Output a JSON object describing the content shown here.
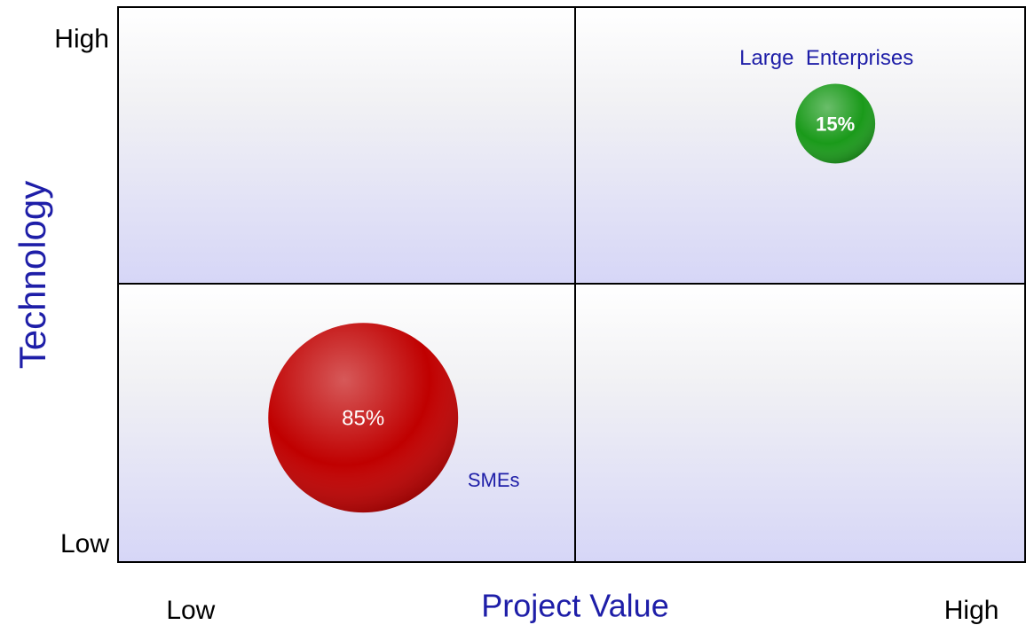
{
  "chart_data": {
    "type": "bubble",
    "xlabel": "Project Value",
    "ylabel": "Technology",
    "xlim": [
      0,
      100
    ],
    "ylim": [
      0,
      100
    ],
    "xticks": [
      {
        "value": 8,
        "label": "Low"
      },
      {
        "value": 94,
        "label": "High"
      }
    ],
    "yticks": [
      {
        "value": 3,
        "label": "Low"
      },
      {
        "value": 94,
        "label": "High"
      }
    ],
    "series": [
      {
        "name": "SMEs",
        "color": "#c00000",
        "x": [
          27
        ],
        "y": [
          26
        ],
        "sizes": [
          85
        ],
        "value_labels": [
          "85%"
        ]
      },
      {
        "name": "Large  Enterprises",
        "color": "#1a9a1a",
        "x": [
          79
        ],
        "y": [
          79
        ],
        "sizes": [
          15
        ],
        "value_labels": [
          "15%"
        ]
      }
    ]
  }
}
